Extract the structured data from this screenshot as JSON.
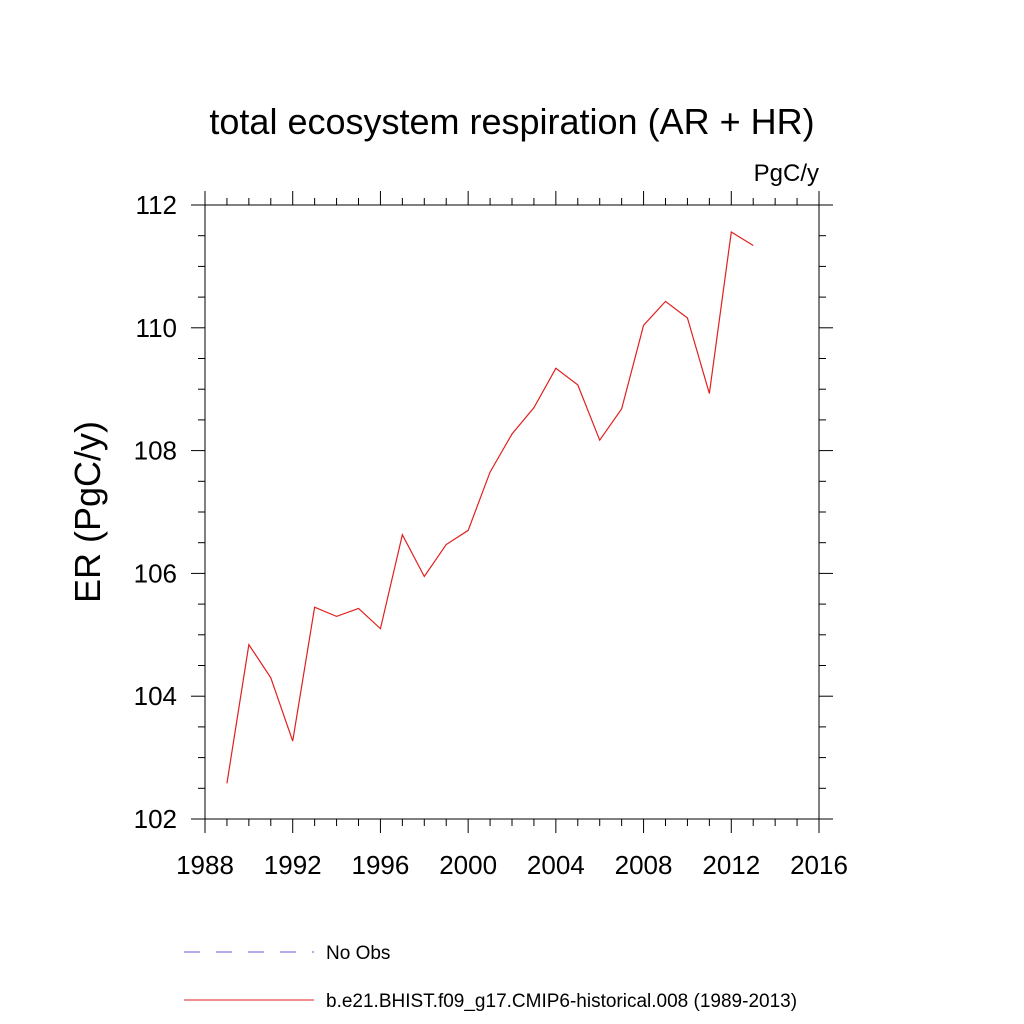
{
  "chart_data": {
    "type": "line",
    "title": "total ecosystem respiration (AR + HR)",
    "units": "PgC/y",
    "ylabel": "ER  (PgC/y)",
    "xlabel": "",
    "xlim": [
      1988,
      2016
    ],
    "ylim": [
      102,
      112
    ],
    "x_ticks": [
      "1988",
      "1992",
      "1996",
      "2000",
      "2004",
      "2008",
      "2012",
      "2016"
    ],
    "y_ticks": [
      "102",
      "104",
      "106",
      "108",
      "110",
      "112"
    ],
    "legend_position": "bottom",
    "legend": [
      {
        "label": "No Obs",
        "color": "#5b5bcf",
        "style": "dashed"
      },
      {
        "label": "b.e21.BHIST.f09_g17.CMIP6-historical.008 (1989-2013)",
        "color": "#e0201e",
        "style": "solid"
      }
    ],
    "series": [
      {
        "color": "#e0201e",
        "x": [
          1989,
          1990,
          1991,
          1992,
          1993,
          1994,
          1995,
          1996,
          1997,
          1998,
          1999,
          2000,
          2001,
          2002,
          2003,
          2004,
          2005,
          2006,
          2007,
          2008,
          2009,
          2010,
          2011,
          2012,
          2013
        ],
        "values": [
          102.58,
          104.84,
          104.3,
          103.27,
          105.45,
          105.3,
          105.43,
          105.1,
          106.63,
          105.95,
          106.47,
          106.7,
          107.65,
          108.27,
          108.7,
          109.34,
          109.07,
          108.17,
          108.68,
          110.04,
          110.43,
          110.16,
          108.93,
          111.56,
          111.34
        ]
      }
    ]
  }
}
